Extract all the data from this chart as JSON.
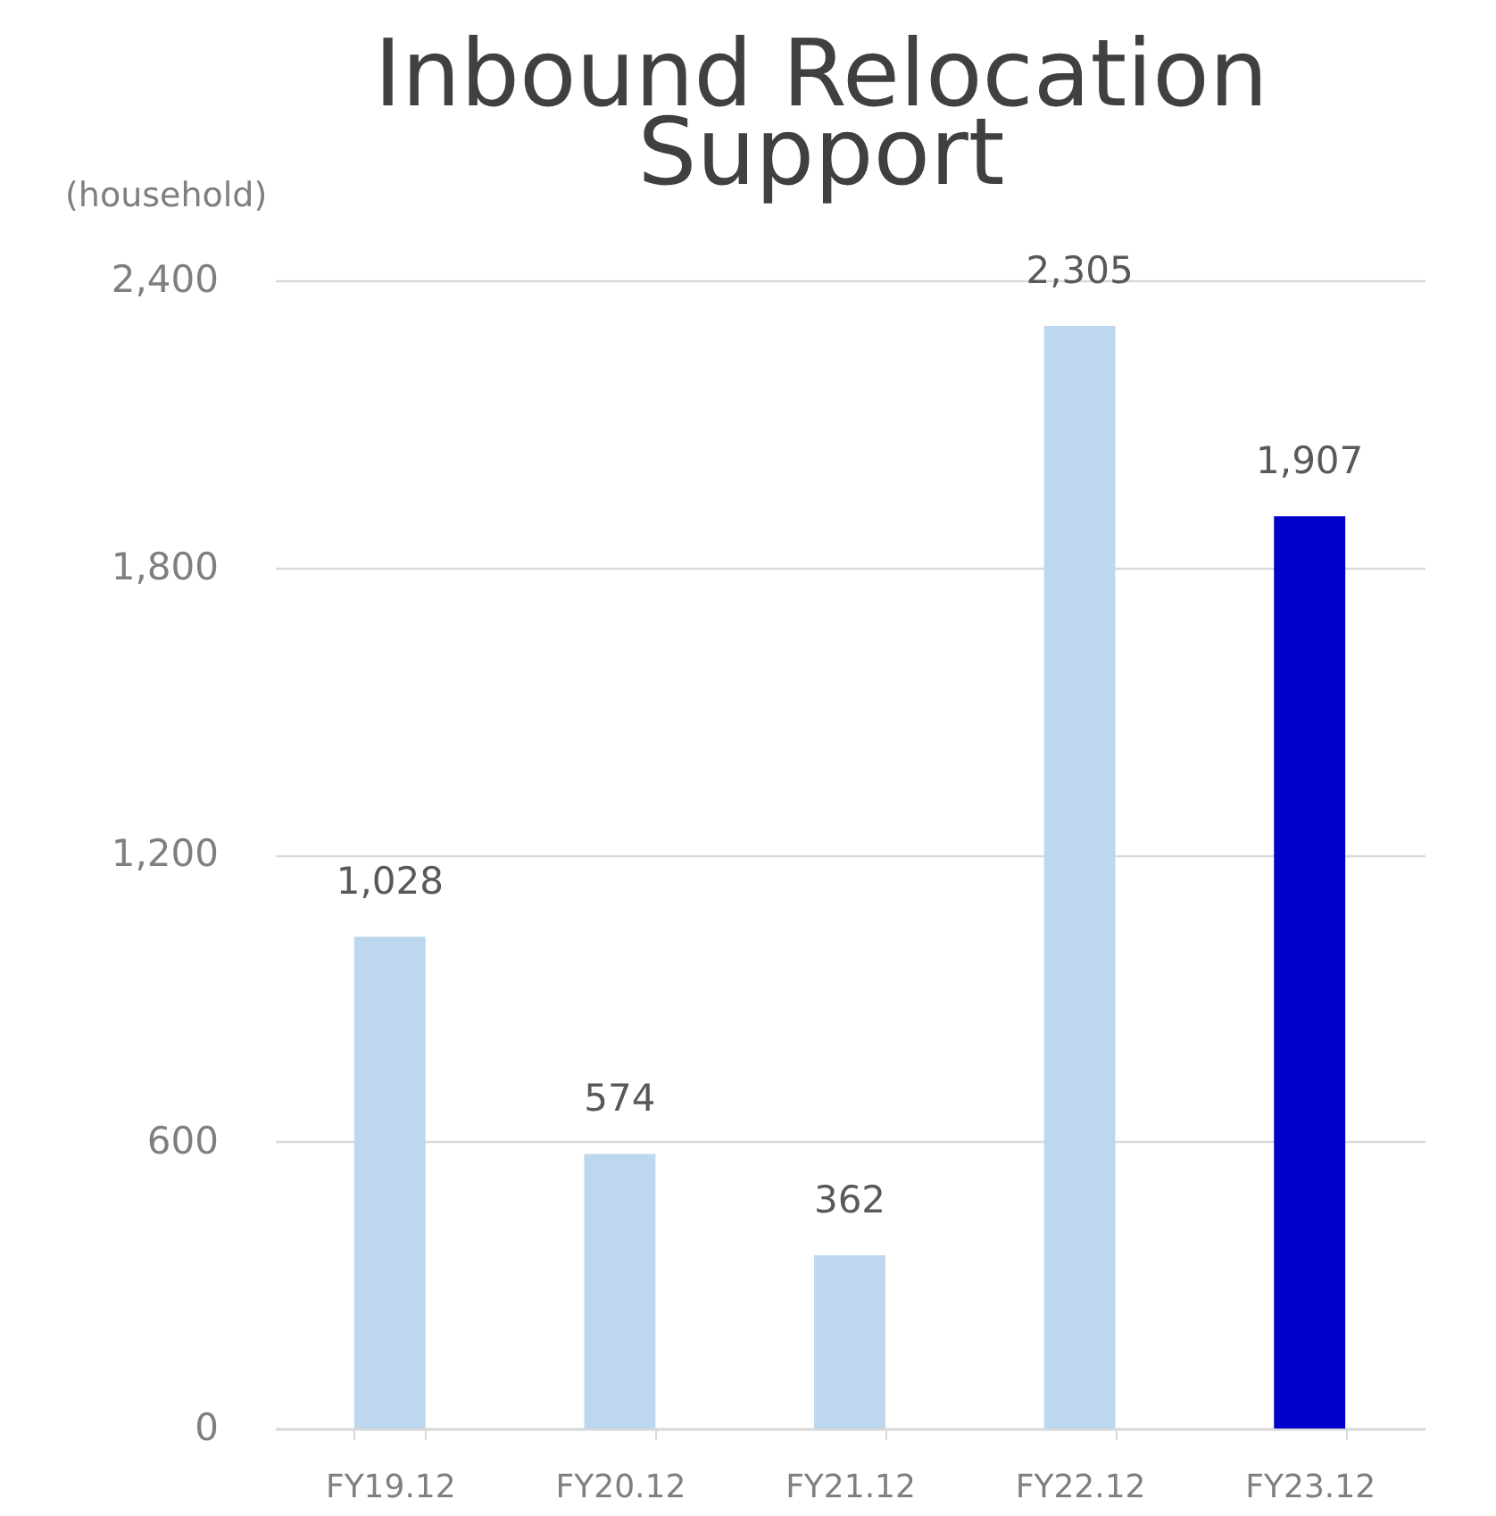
{
  "chart_data": {
    "type": "bar",
    "title": "Inbound Relocation Support",
    "ylabel": "(household)",
    "categories": [
      "FY19.12",
      "FY20.12",
      "FY21.12",
      "FY22.12",
      "FY23.12"
    ],
    "values": [
      1028,
      574,
      362,
      2305,
      1907
    ],
    "value_labels": [
      "1,028",
      "574",
      "362",
      "2,305",
      "1,907"
    ],
    "colors": [
      "#bdd7ee",
      "#bdd7ee",
      "#bdd7ee",
      "#bdd7ee",
      "#0000cc"
    ],
    "ylim": [
      0,
      2400
    ],
    "yticks": [
      0,
      {
        "value": 600,
        "label": "600"
      },
      {
        "value": 1200,
        "label": "1,200"
      },
      {
        "value": 1800,
        "label": "1,800"
      },
      {
        "value": 2400,
        "label": "2,400"
      }
    ],
    "grid": "y"
  }
}
